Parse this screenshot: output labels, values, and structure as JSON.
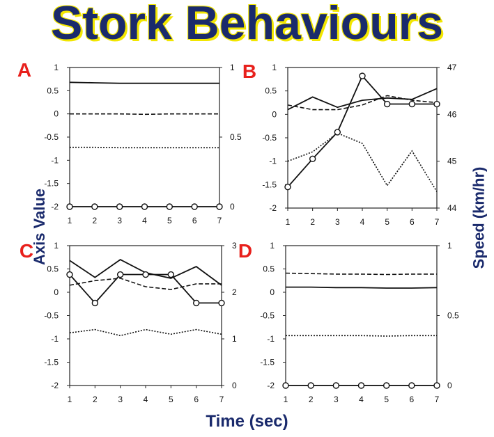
{
  "title": "Stork Behaviours",
  "y_axis_label": "Axis Value",
  "y2_axis_label": "Speed (km/hr)",
  "x_axis_label": "Time (sec)",
  "colors": {
    "title": "#1a2a6c",
    "title_shadow": "#f2e600",
    "panel_letter": "#e8201c",
    "line": "#111111"
  },
  "chart_data": [
    {
      "panel": "A",
      "type": "line",
      "x": [
        1,
        2,
        3,
        4,
        5,
        6,
        7
      ],
      "ylim": [
        -2,
        1
      ],
      "y_ticks": [
        "1",
        "0.5",
        "0",
        "-0.5",
        "-1",
        "-1.5",
        "-2"
      ],
      "y2lim": [
        0,
        1
      ],
      "y2_ticks": [
        "1",
        "0.5",
        "0"
      ],
      "series": [
        {
          "style": "solid",
          "axis": "left",
          "values": [
            0.68,
            0.67,
            0.66,
            0.66,
            0.66,
            0.66,
            0.66
          ]
        },
        {
          "style": "dashed",
          "axis": "left",
          "values": [
            0.0,
            0.0,
            0.0,
            -0.01,
            0.0,
            0.0,
            0.0
          ]
        },
        {
          "style": "dotted",
          "axis": "left",
          "values": [
            -0.72,
            -0.72,
            -0.73,
            -0.73,
            -0.73,
            -0.73,
            -0.73
          ]
        },
        {
          "style": "circle",
          "axis": "right",
          "values": [
            0,
            0,
            0,
            0,
            0,
            0,
            0
          ]
        }
      ]
    },
    {
      "panel": "B",
      "type": "line",
      "x": [
        1,
        2,
        3,
        4,
        5,
        6,
        7
      ],
      "ylim": [
        -2,
        1
      ],
      "y_ticks": [
        "1",
        "0.5",
        "0",
        "-0.5",
        "-1",
        "-1.5",
        "-2"
      ],
      "y2lim": [
        44,
        47
      ],
      "y2_ticks": [
        "47",
        "46",
        "45",
        "44"
      ],
      "series": [
        {
          "style": "solid",
          "axis": "left",
          "values": [
            0.1,
            0.37,
            0.15,
            0.3,
            0.35,
            0.32,
            0.55
          ]
        },
        {
          "style": "dashed",
          "axis": "left",
          "values": [
            0.2,
            0.1,
            0.1,
            0.2,
            0.4,
            0.3,
            0.25
          ]
        },
        {
          "style": "dotted",
          "axis": "left",
          "values": [
            -1.0,
            -0.8,
            -0.4,
            -0.62,
            -1.52,
            -0.78,
            -1.65
          ]
        },
        {
          "style": "circle",
          "axis": "right",
          "values": [
            44.45,
            45.05,
            45.62,
            46.82,
            46.22,
            46.22,
            46.22
          ]
        }
      ]
    },
    {
      "panel": "C",
      "type": "line",
      "x": [
        1,
        2,
        3,
        4,
        5,
        6,
        7
      ],
      "ylim": [
        -2,
        1
      ],
      "y_ticks": [
        "1",
        "0.5",
        "0",
        "-0.5",
        "-1",
        "-1.5",
        "-2"
      ],
      "y2lim": [
        0,
        3
      ],
      "y2_ticks": [
        "3",
        "2",
        "1",
        "0"
      ],
      "series": [
        {
          "style": "solid",
          "axis": "left",
          "values": [
            0.68,
            0.32,
            0.7,
            0.42,
            0.3,
            0.55,
            0.15
          ]
        },
        {
          "style": "dashed",
          "axis": "left",
          "values": [
            0.15,
            0.25,
            0.3,
            0.12,
            0.06,
            0.18,
            0.18
          ]
        },
        {
          "style": "dotted",
          "axis": "left",
          "values": [
            -0.87,
            -0.8,
            -0.93,
            -0.8,
            -0.9,
            -0.8,
            -0.9
          ]
        },
        {
          "style": "circle",
          "axis": "right",
          "values": [
            2.38,
            1.77,
            2.38,
            2.38,
            2.38,
            1.77,
            1.77
          ]
        }
      ]
    },
    {
      "panel": "D",
      "type": "line",
      "x": [
        1,
        2,
        3,
        4,
        5,
        6,
        7
      ],
      "ylim": [
        -2,
        1
      ],
      "y_ticks": [
        "1",
        "0.5",
        "0",
        "-0.5",
        "-1",
        "-1.5",
        "-2"
      ],
      "y2lim": [
        0,
        1
      ],
      "y2_ticks": [
        "1",
        "0.5",
        "0"
      ],
      "series": [
        {
          "style": "solid",
          "axis": "left",
          "values": [
            0.11,
            0.11,
            0.1,
            0.1,
            0.09,
            0.09,
            0.1
          ]
        },
        {
          "style": "dashed",
          "axis": "left",
          "values": [
            0.41,
            0.4,
            0.39,
            0.39,
            0.38,
            0.39,
            0.39
          ]
        },
        {
          "style": "dotted",
          "axis": "left",
          "values": [
            -0.93,
            -0.93,
            -0.93,
            -0.93,
            -0.94,
            -0.93,
            -0.93
          ]
        },
        {
          "style": "circle",
          "axis": "right",
          "values": [
            0,
            0,
            0,
            0,
            0,
            0,
            0
          ]
        }
      ]
    }
  ]
}
